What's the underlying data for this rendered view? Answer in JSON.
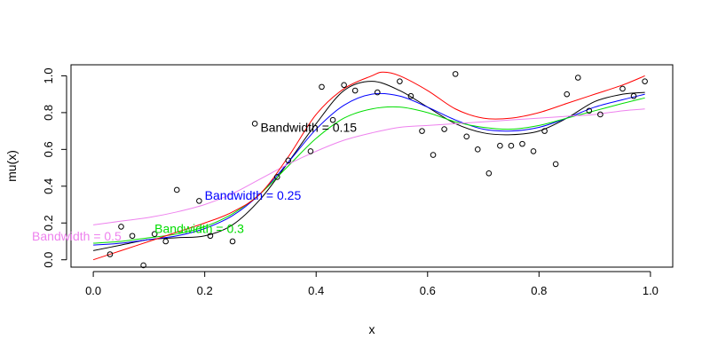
{
  "chart_data": {
    "type": "scatter",
    "title": "",
    "xlabel": "x",
    "ylabel": "mu(x)",
    "xlim": [
      -0.04,
      1.04
    ],
    "ylim": [
      -0.04,
      1.06
    ],
    "xticks": [
      0.0,
      0.2,
      0.4,
      0.6,
      0.8,
      1.0
    ],
    "xtick_labels": [
      "0.0",
      "0.2",
      "0.4",
      "0.6",
      "0.8",
      "1.0"
    ],
    "yticks": [
      0.0,
      0.2,
      0.4,
      0.6,
      0.8,
      1.0
    ],
    "ytick_labels": [
      "0.0",
      "0.2",
      "0.4",
      "0.6",
      "0.8",
      "1.0"
    ],
    "grid": false,
    "points": {
      "x": [
        0.03,
        0.05,
        0.07,
        0.09,
        0.11,
        0.13,
        0.15,
        0.19,
        0.21,
        0.25,
        0.29,
        0.33,
        0.35,
        0.39,
        0.41,
        0.43,
        0.45,
        0.47,
        0.51,
        0.55,
        0.57,
        0.59,
        0.61,
        0.63,
        0.65,
        0.67,
        0.69,
        0.71,
        0.73,
        0.75,
        0.77,
        0.79,
        0.81,
        0.83,
        0.85,
        0.87,
        0.89,
        0.91,
        0.95,
        0.97,
        0.99
      ],
      "y": [
        0.03,
        0.18,
        0.13,
        -0.03,
        0.14,
        0.1,
        0.38,
        0.32,
        0.13,
        0.1,
        0.74,
        0.45,
        0.54,
        0.59,
        0.94,
        0.76,
        0.95,
        0.92,
        0.91,
        0.97,
        0.89,
        0.7,
        0.57,
        0.71,
        1.01,
        0.67,
        0.6,
        0.47,
        0.62,
        0.62,
        0.63,
        0.59,
        0.7,
        0.52,
        0.9,
        0.99,
        0.81,
        0.79,
        0.93,
        0.89,
        0.97
      ]
    },
    "series": [
      {
        "color": "#000000",
        "x": [
          0.0,
          0.05,
          0.1,
          0.15,
          0.2,
          0.25,
          0.3,
          0.35,
          0.4,
          0.45,
          0.5,
          0.55,
          0.6,
          0.65,
          0.7,
          0.75,
          0.8,
          0.85,
          0.9,
          0.95,
          0.99
        ],
        "y": [
          0.05,
          0.08,
          0.11,
          0.12,
          0.13,
          0.19,
          0.33,
          0.53,
          0.74,
          0.92,
          0.97,
          0.92,
          0.83,
          0.74,
          0.69,
          0.68,
          0.7,
          0.77,
          0.86,
          0.9,
          0.91
        ]
      },
      {
        "color": "#0000ff",
        "x": [
          0.0,
          0.05,
          0.1,
          0.15,
          0.2,
          0.25,
          0.3,
          0.35,
          0.4,
          0.45,
          0.5,
          0.55,
          0.6,
          0.65,
          0.7,
          0.75,
          0.8,
          0.85,
          0.9,
          0.95,
          0.99
        ],
        "y": [
          0.08,
          0.09,
          0.11,
          0.13,
          0.17,
          0.24,
          0.36,
          0.53,
          0.71,
          0.84,
          0.9,
          0.89,
          0.83,
          0.76,
          0.71,
          0.7,
          0.72,
          0.77,
          0.83,
          0.87,
          0.9
        ]
      },
      {
        "color": "#00dd00",
        "x": [
          0.0,
          0.05,
          0.1,
          0.15,
          0.2,
          0.25,
          0.3,
          0.35,
          0.4,
          0.45,
          0.5,
          0.55,
          0.6,
          0.65,
          0.7,
          0.75,
          0.8,
          0.85,
          0.9,
          0.95,
          0.99
        ],
        "y": [
          0.09,
          0.1,
          0.12,
          0.14,
          0.18,
          0.25,
          0.36,
          0.51,
          0.66,
          0.77,
          0.82,
          0.83,
          0.8,
          0.75,
          0.72,
          0.71,
          0.73,
          0.77,
          0.81,
          0.85,
          0.88
        ]
      },
      {
        "color": "#ee82ee",
        "x": [
          0.0,
          0.05,
          0.1,
          0.15,
          0.2,
          0.25,
          0.3,
          0.35,
          0.4,
          0.45,
          0.5,
          0.55,
          0.6,
          0.65,
          0.7,
          0.75,
          0.8,
          0.85,
          0.9,
          0.95,
          0.99
        ],
        "y": [
          0.19,
          0.21,
          0.23,
          0.26,
          0.3,
          0.36,
          0.44,
          0.52,
          0.59,
          0.65,
          0.69,
          0.72,
          0.73,
          0.74,
          0.75,
          0.76,
          0.77,
          0.78,
          0.79,
          0.81,
          0.82
        ]
      },
      {
        "color": "#ff0000",
        "x": [
          0.0,
          0.05,
          0.1,
          0.15,
          0.2,
          0.25,
          0.3,
          0.35,
          0.4,
          0.45,
          0.5,
          0.52,
          0.55,
          0.6,
          0.65,
          0.7,
          0.75,
          0.8,
          0.85,
          0.9,
          0.95,
          0.99
        ],
        "y": [
          0.0,
          0.05,
          0.1,
          0.15,
          0.2,
          0.26,
          0.36,
          0.56,
          0.79,
          0.93,
          1.0,
          1.02,
          1.0,
          0.92,
          0.82,
          0.77,
          0.77,
          0.8,
          0.85,
          0.9,
          0.95,
          1.0
        ]
      }
    ],
    "annotations": [
      {
        "text": "Bandwidth = 0.15",
        "x": 0.3,
        "y": 0.72,
        "color": "#000000"
      },
      {
        "text": "Bandwidth = 0.25",
        "x": 0.2,
        "y": 0.35,
        "color": "#0000ff"
      },
      {
        "text": "Bandwidth = 0.3",
        "x": 0.11,
        "y": 0.17,
        "color": "#00dd00"
      },
      {
        "text": "Bandwidth = 0.5",
        "x": -0.11,
        "y": 0.13,
        "color": "#ee82ee"
      }
    ]
  }
}
